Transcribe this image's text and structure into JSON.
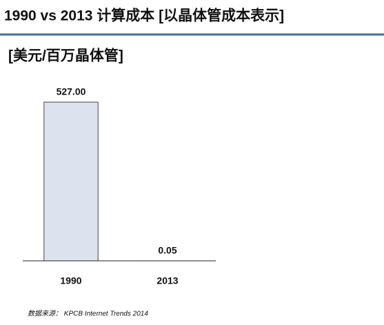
{
  "chart_data": {
    "type": "bar",
    "title": "1990 vs 2013 计算成本 [以晶体管成本表示]",
    "subtitle": "[美元/百万晶体管]",
    "categories": [
      "1990",
      "2013"
    ],
    "values": [
      527,
      0.05
    ],
    "value_labels": [
      "527.00",
      "0.05"
    ],
    "color": "#dde3ee",
    "source": "数据来源： KPCB Internet Trends 2014"
  }
}
